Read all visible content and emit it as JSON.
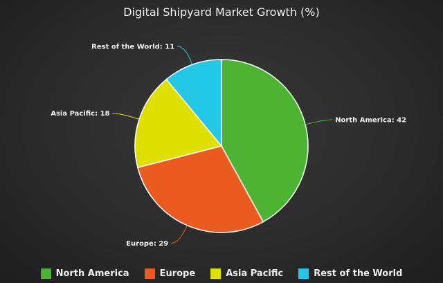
{
  "chart_data": {
    "type": "pie",
    "title": "Digital Shipyard Market Growth (%)",
    "categories": [
      "North America",
      "Europe",
      "Asia Pacific",
      "Rest of the World"
    ],
    "values": [
      42,
      29,
      18,
      11
    ],
    "colors": [
      "#4db332",
      "#eb5a1e",
      "#e0e000",
      "#22c8e6"
    ],
    "legend_position": "bottom",
    "start_angle": "top, clockwise"
  }
}
